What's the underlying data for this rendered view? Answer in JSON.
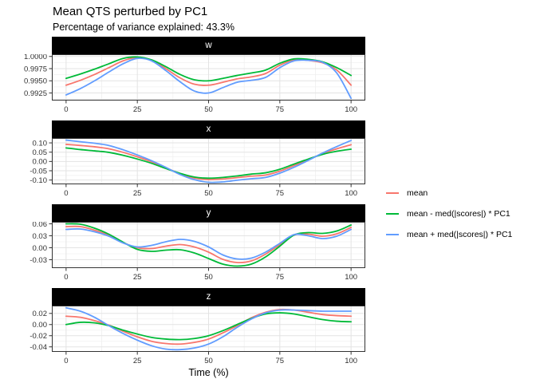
{
  "header": {
    "title": "Mean QTS perturbed by PC1",
    "subtitle": "Percentage of variance explained: 43.3%"
  },
  "colors": {
    "mean": "#F8766D",
    "minus": "#00BA38",
    "plus": "#619CFF",
    "strip_bg": "#000000",
    "strip_text": "#ffffff",
    "grid_major": "#e3e3e3",
    "grid_minor": "#f0f0f0",
    "panel_border": "#333333"
  },
  "legend": {
    "items": [
      {
        "label": "mean",
        "color": "#F8766D"
      },
      {
        "label": "mean - med(|scores|) * PC1",
        "color": "#00BA38"
      },
      {
        "label": "mean + med(|scores|) * PC1",
        "color": "#619CFF"
      }
    ]
  },
  "chart_data": {
    "type": "line",
    "title": "Mean QTS perturbed by PC1",
    "subtitle": "Percentage of variance explained: 43.3%",
    "xlabel": "Time (%)",
    "ylabel": "",
    "grid": true,
    "legend_position": "right",
    "x": [
      0,
      5,
      10,
      15,
      20,
      25,
      30,
      35,
      40,
      45,
      50,
      55,
      60,
      65,
      70,
      75,
      80,
      85,
      90,
      95,
      100
    ],
    "xticks": [
      0,
      25,
      50,
      75,
      100
    ],
    "xlim": [
      -5,
      105
    ],
    "facets": [
      {
        "label": "w",
        "ylim": [
          0.99095,
          1.00045
        ],
        "yticks": [
          {
            "v": 1.0,
            "label": "1.0000"
          },
          {
            "v": 0.9975,
            "label": "0.9975"
          },
          {
            "v": 0.995,
            "label": "0.9950"
          },
          {
            "v": 0.9925,
            "label": "0.9925"
          }
        ],
        "series": [
          {
            "name": "mean",
            "color": "#F8766D",
            "values": [
              0.9941,
              0.9951,
              0.9963,
              0.9977,
              0.9991,
              0.9998,
              0.9992,
              0.9975,
              0.9956,
              0.9943,
              0.9941,
              0.9947,
              0.9954,
              0.9958,
              0.9965,
              0.9982,
              0.9993,
              0.9992,
              0.9987,
              0.9972,
              0.9941
            ]
          },
          {
            "name": "mean - med(|scores|) * PC1",
            "color": "#00BA38",
            "values": [
              0.9955,
              0.9964,
              0.9974,
              0.9985,
              0.9996,
              0.9999,
              0.9993,
              0.9979,
              0.9963,
              0.9952,
              0.995,
              0.9955,
              0.9961,
              0.9966,
              0.9972,
              0.9986,
              0.9995,
              0.9994,
              0.9989,
              0.9977,
              0.9961
            ]
          },
          {
            "name": "mean + med(|scores|) * PC1",
            "color": "#619CFF",
            "values": [
              0.9921,
              0.9934,
              0.995,
              0.9968,
              0.9985,
              0.9996,
              0.9991,
              0.9971,
              0.9948,
              0.9929,
              0.9925,
              0.9936,
              0.9947,
              0.9951,
              0.9957,
              0.9977,
              0.9991,
              0.9992,
              0.9988,
              0.9966,
              0.9914
            ]
          }
        ]
      },
      {
        "label": "x",
        "ylim": [
          -0.123,
          0.126
        ],
        "yticks": [
          {
            "v": 0.1,
            "label": "0.10"
          },
          {
            "v": 0.05,
            "label": "0.05"
          },
          {
            "v": 0.0,
            "label": "0.00"
          },
          {
            "v": -0.05,
            "label": "-0.05"
          },
          {
            "v": -0.1,
            "label": "-0.10"
          }
        ],
        "series": [
          {
            "name": "mean",
            "color": "#F8766D",
            "values": [
              0.092,
              0.086,
              0.079,
              0.068,
              0.049,
              0.025,
              -0.002,
              -0.034,
              -0.066,
              -0.089,
              -0.097,
              -0.094,
              -0.087,
              -0.079,
              -0.073,
              -0.052,
              -0.022,
              0.01,
              0.042,
              0.068,
              0.09
            ]
          },
          {
            "name": "mean - med(|scores|) * PC1",
            "color": "#00BA38",
            "values": [
              0.073,
              0.064,
              0.057,
              0.049,
              0.033,
              0.013,
              -0.01,
              -0.038,
              -0.064,
              -0.084,
              -0.09,
              -0.086,
              -0.078,
              -0.068,
              -0.061,
              -0.042,
              -0.014,
              0.013,
              0.038,
              0.055,
              0.066
            ]
          },
          {
            "name": "mean + med(|scores|) * PC1",
            "color": "#619CFF",
            "values": [
              0.115,
              0.106,
              0.098,
              0.086,
              0.063,
              0.035,
              0.004,
              -0.032,
              -0.07,
              -0.098,
              -0.112,
              -0.11,
              -0.101,
              -0.093,
              -0.086,
              -0.063,
              -0.031,
              0.006,
              0.045,
              0.08,
              0.113
            ]
          }
        ]
      },
      {
        "label": "y",
        "ylim": [
          -0.051,
          0.065
        ],
        "yticks": [
          {
            "v": 0.06,
            "label": "0.06"
          },
          {
            "v": 0.03,
            "label": "0.03"
          },
          {
            "v": 0.0,
            "label": "0.00"
          },
          {
            "v": -0.03,
            "label": "-0.03"
          }
        ],
        "series": [
          {
            "name": "mean",
            "color": "#F8766D",
            "values": [
              0.053,
              0.053,
              0.044,
              0.031,
              0.013,
              0.0,
              -0.002,
              0.004,
              0.008,
              0.002,
              -0.011,
              -0.029,
              -0.037,
              -0.033,
              -0.016,
              0.008,
              0.032,
              0.034,
              0.029,
              0.035,
              0.051
            ]
          },
          {
            "name": "mean - med(|scores|) * PC1",
            "color": "#00BA38",
            "values": [
              0.06,
              0.059,
              0.049,
              0.034,
              0.014,
              -0.004,
              -0.009,
              -0.006,
              -0.005,
              -0.013,
              -0.027,
              -0.041,
              -0.046,
              -0.041,
              -0.023,
              0.004,
              0.032,
              0.038,
              0.036,
              0.042,
              0.057
            ]
          },
          {
            "name": "mean + med(|scores|) * PC1",
            "color": "#619CFF",
            "values": [
              0.046,
              0.047,
              0.04,
              0.029,
              0.012,
              0.002,
              0.006,
              0.015,
              0.021,
              0.016,
              0.002,
              -0.018,
              -0.028,
              -0.026,
              -0.011,
              0.011,
              0.033,
              0.03,
              0.023,
              0.029,
              0.046
            ]
          }
        ]
      },
      {
        "label": "z",
        "ylim": [
          -0.049,
          0.034
        ],
        "yticks": [
          {
            "v": 0.02,
            "label": "0.02"
          },
          {
            "v": 0.0,
            "label": "0.00"
          },
          {
            "v": -0.02,
            "label": "-0.02"
          },
          {
            "v": -0.04,
            "label": "-0.04"
          }
        ],
        "series": [
          {
            "name": "mean",
            "color": "#F8766D",
            "values": [
              0.015,
              0.013,
              0.007,
              -0.001,
              -0.012,
              -0.022,
              -0.03,
              -0.034,
              -0.035,
              -0.032,
              -0.026,
              -0.015,
              -0.002,
              0.012,
              0.022,
              0.027,
              0.026,
              0.022,
              0.018,
              0.016,
              0.015
            ]
          },
          {
            "name": "mean - med(|scores|) * PC1",
            "color": "#00BA38",
            "values": [
              0.0,
              0.004,
              0.003,
              -0.002,
              -0.01,
              -0.017,
              -0.023,
              -0.026,
              -0.027,
              -0.025,
              -0.02,
              -0.011,
              0.0,
              0.011,
              0.019,
              0.021,
              0.019,
              0.014,
              0.009,
              0.006,
              0.005
            ]
          },
          {
            "name": "mean + med(|scores|) * PC1",
            "color": "#619CFF",
            "values": [
              0.03,
              0.024,
              0.013,
              -0.002,
              -0.016,
              -0.028,
              -0.038,
              -0.044,
              -0.045,
              -0.042,
              -0.035,
              -0.022,
              -0.005,
              0.01,
              0.021,
              0.026,
              0.026,
              0.025,
              0.024,
              0.024,
              0.024
            ]
          }
        ]
      }
    ]
  }
}
